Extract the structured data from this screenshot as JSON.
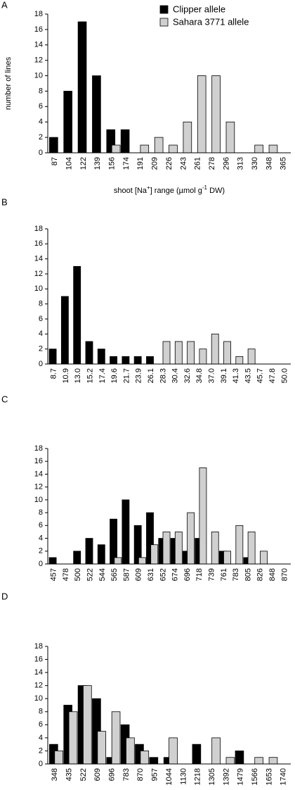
{
  "chart_data": [
    {
      "type": "bar",
      "panel_label": "A",
      "y_label": "number of lines",
      "x_label": {
        "before": "shoot [Na",
        "sup1": "+",
        "middle": "] range (µmol g",
        "sup2": "-1",
        "after": " DW)"
      },
      "categories": [
        "87",
        "104",
        "122",
        "139",
        "156",
        "174",
        "191",
        "209",
        "226",
        "243",
        "261",
        "278",
        "296",
        "313",
        "330",
        "348",
        "365"
      ],
      "series": [
        {
          "name": "Clipper allele",
          "color": "#000000",
          "values": [
            2,
            8,
            17,
            10,
            3,
            3,
            0,
            0,
            0,
            0,
            0,
            0,
            0,
            0,
            0,
            0,
            0
          ]
        },
        {
          "name": "Sahara 3771 allele",
          "color": "#d0d0d0",
          "values": [
            0,
            0,
            0,
            0,
            1,
            0,
            1,
            2,
            1,
            4,
            10,
            10,
            4,
            0,
            1,
            1,
            0
          ]
        }
      ],
      "ylim": [
        0,
        18
      ],
      "yticks": [
        0,
        2,
        4,
        6,
        8,
        10,
        12,
        14,
        16,
        18
      ],
      "legend": "top-right"
    },
    {
      "type": "bar",
      "panel_label": "B",
      "categories": [
        "8.7",
        "10.9",
        "13.0",
        "15.2",
        "17.4",
        "19.6",
        "21.7",
        "23.9",
        "26.1",
        "28.3",
        "30.4",
        "32.6",
        "34.8",
        "37.0",
        "39.1",
        "41.3",
        "43.5",
        "45.7",
        "47.8",
        "50.0"
      ],
      "series": [
        {
          "color": "#000000",
          "values": [
            2,
            9,
            13,
            3,
            2,
            1,
            1,
            1,
            1,
            0,
            0,
            0,
            0,
            0,
            0,
            0,
            0,
            0,
            0,
            0
          ]
        },
        {
          "color": "#d0d0d0",
          "values": [
            0,
            0,
            0,
            0,
            0,
            0,
            0,
            0,
            0,
            3,
            3,
            3,
            2,
            4,
            3,
            1,
            2,
            0,
            0,
            0
          ]
        }
      ],
      "ylim": [
        0,
        18
      ],
      "yticks": [
        0,
        2,
        4,
        6,
        8,
        10,
        12,
        14,
        16,
        18
      ]
    },
    {
      "type": "bar",
      "panel_label": "C",
      "categories": [
        "457",
        "478",
        "500",
        "522",
        "544",
        "565",
        "587",
        "609",
        "631",
        "652",
        "674",
        "696",
        "718",
        "739",
        "761",
        "783",
        "805",
        "826",
        "848",
        "870"
      ],
      "series": [
        {
          "color": "#000000",
          "values": [
            1,
            0,
            2,
            4,
            3,
            7,
            10,
            6,
            8,
            4,
            4,
            2,
            4,
            0,
            2,
            0,
            1,
            0,
            0,
            0
          ]
        },
        {
          "color": "#d0d0d0",
          "values": [
            0,
            0,
            0,
            0,
            0,
            1,
            0,
            1,
            3,
            5,
            5,
            8,
            15,
            5,
            2,
            6,
            5,
            2,
            0,
            0
          ]
        }
      ],
      "ylim": [
        0,
        18
      ],
      "yticks": [
        0,
        2,
        4,
        6,
        8,
        10,
        12,
        14,
        16,
        18
      ]
    },
    {
      "type": "bar",
      "panel_label": "D",
      "categories": [
        "348",
        "435",
        "522",
        "609",
        "696",
        "783",
        "870",
        "957",
        "1044",
        "1130",
        "1218",
        "1305",
        "1392",
        "1479",
        "1566",
        "1653",
        "1740"
      ],
      "series": [
        {
          "color": "#000000",
          "values": [
            3,
            9,
            12,
            10,
            1,
            6,
            3,
            1,
            1,
            0,
            3,
            0,
            0,
            2,
            0,
            0,
            0
          ]
        },
        {
          "color": "#d0d0d0",
          "values": [
            2,
            8,
            12,
            5,
            8,
            4,
            2,
            0,
            4,
            0,
            0,
            4,
            1,
            0,
            1,
            1,
            0
          ]
        }
      ],
      "ylim": [
        0,
        18
      ],
      "yticks": [
        0,
        2,
        4,
        6,
        8,
        10,
        12,
        14,
        16,
        18
      ]
    }
  ]
}
